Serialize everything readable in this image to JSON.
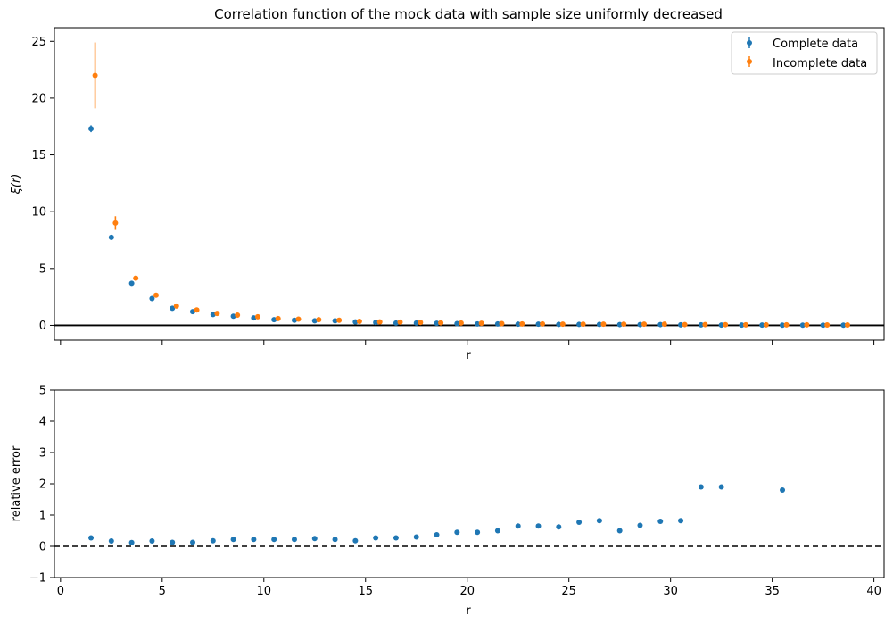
{
  "chart_data": [
    {
      "type": "scatter",
      "title": "Correlation function of the mock data with sample size uniformly decreased",
      "xlabel": "r",
      "ylabel": "ξ(r)",
      "xlim": [
        -0.3,
        40.5
      ],
      "ylim": [
        -1.3,
        26.2
      ],
      "xticks": [
        0,
        5,
        10,
        15,
        20,
        25,
        30,
        35,
        40
      ],
      "xtick_labels_shown": false,
      "yticks": [
        0,
        5,
        10,
        15,
        20,
        25
      ],
      "ytick_labels": [
        "0",
        "5",
        "10",
        "15",
        "20",
        "25"
      ],
      "legend_position": "top-right",
      "reference_line": {
        "y": 0,
        "style": "solid",
        "color": "#000000"
      },
      "series": [
        {
          "name": "Complete data",
          "color": "#1f77b4",
          "x": [
            1.5,
            2.5,
            3.5,
            4.5,
            5.5,
            6.5,
            7.5,
            8.5,
            9.5,
            10.5,
            11.5,
            12.5,
            13.5,
            14.5,
            15.5,
            16.5,
            17.5,
            18.5,
            19.5,
            20.5,
            21.5,
            22.5,
            23.5,
            24.5,
            25.5,
            26.5,
            27.5,
            28.5,
            29.5,
            30.5,
            31.5,
            32.5,
            33.5,
            34.5,
            35.5,
            36.5,
            37.5,
            38.5
          ],
          "y": [
            17.3,
            7.75,
            3.7,
            2.35,
            1.5,
            1.2,
            0.95,
            0.8,
            0.65,
            0.5,
            0.45,
            0.4,
            0.4,
            0.3,
            0.25,
            0.2,
            0.2,
            0.18,
            0.15,
            0.12,
            0.12,
            0.1,
            0.1,
            0.08,
            0.08,
            0.08,
            0.07,
            0.07,
            0.07,
            0.05,
            0.05,
            0.03,
            0.03,
            0.03,
            0.02,
            0.02,
            0.02,
            0.02
          ],
          "yerr": [
            0.3,
            0.1,
            0.1,
            0.05,
            0.05,
            0.05,
            0.03,
            0.03,
            0.03,
            0.03,
            0.03,
            0.02,
            0.02,
            0.02,
            0.02,
            0.02,
            0.02,
            0.02,
            0.02,
            0.02,
            0.02,
            0.02,
            0.02,
            0.02,
            0.02,
            0.02,
            0.02,
            0.02,
            0.02,
            0.02,
            0.02,
            0.02,
            0.02,
            0.02,
            0.02,
            0.02,
            0.02,
            0.02
          ]
        },
        {
          "name": "Incomplete data",
          "color": "#ff7f0e",
          "x": [
            1.7,
            2.7,
            3.7,
            4.7,
            5.7,
            6.7,
            7.7,
            8.7,
            9.7,
            10.7,
            11.7,
            12.7,
            13.7,
            14.7,
            15.7,
            16.7,
            17.7,
            18.7,
            19.7,
            20.7,
            21.7,
            22.7,
            23.7,
            24.7,
            25.7,
            26.7,
            27.7,
            28.7,
            29.7,
            30.7,
            31.7,
            32.7,
            33.7,
            34.7,
            35.7,
            36.7,
            37.7,
            38.7
          ],
          "y": [
            22.0,
            9.0,
            4.15,
            2.65,
            1.7,
            1.35,
            1.05,
            0.9,
            0.75,
            0.6,
            0.55,
            0.5,
            0.45,
            0.35,
            0.3,
            0.28,
            0.25,
            0.22,
            0.2,
            0.18,
            0.15,
            0.12,
            0.12,
            0.1,
            0.1,
            0.1,
            0.1,
            0.1,
            0.1,
            0.07,
            0.07,
            0.06,
            0.05,
            0.05,
            0.05,
            0.05,
            0.04,
            0.04
          ],
          "yerr": [
            2.9,
            0.6,
            0.2,
            0.1,
            0.05,
            0.05,
            0.05,
            0.03,
            0.03,
            0.03,
            0.03,
            0.03,
            0.03,
            0.02,
            0.02,
            0.02,
            0.02,
            0.02,
            0.02,
            0.02,
            0.02,
            0.02,
            0.02,
            0.02,
            0.02,
            0.02,
            0.02,
            0.02,
            0.02,
            0.02,
            0.02,
            0.02,
            0.02,
            0.02,
            0.02,
            0.02,
            0.02,
            0.02
          ]
        }
      ]
    },
    {
      "type": "scatter",
      "title": "",
      "xlabel": "r",
      "ylabel": "relative error",
      "xlim": [
        -0.3,
        40.5
      ],
      "ylim": [
        -1,
        5
      ],
      "xticks": [
        0,
        5,
        10,
        15,
        20,
        25,
        30,
        35,
        40
      ],
      "xtick_labels": [
        "0",
        "5",
        "10",
        "15",
        "20",
        "25",
        "30",
        "35",
        "40"
      ],
      "yticks": [
        -1,
        0,
        1,
        2,
        3,
        4,
        5
      ],
      "ytick_labels": [
        "−1",
        "0",
        "1",
        "2",
        "3",
        "4",
        "5"
      ],
      "reference_line": {
        "y": 0,
        "style": "dashed",
        "color": "#000000"
      },
      "series": [
        {
          "color": "#1f77b4",
          "x": [
            1.5,
            2.5,
            3.5,
            4.5,
            5.5,
            6.5,
            7.5,
            8.5,
            9.5,
            10.5,
            11.5,
            12.5,
            13.5,
            14.5,
            15.5,
            16.5,
            17.5,
            18.5,
            19.5,
            20.5,
            21.5,
            22.5,
            23.5,
            24.5,
            25.5,
            26.5,
            27.5,
            28.5,
            29.5,
            30.5,
            31.5,
            32.5,
            35.5
          ],
          "y": [
            0.27,
            0.17,
            0.12,
            0.17,
            0.13,
            0.13,
            0.18,
            0.22,
            0.22,
            0.22,
            0.22,
            0.25,
            0.22,
            0.18,
            0.27,
            0.27,
            0.3,
            0.37,
            0.45,
            0.45,
            0.5,
            0.65,
            0.65,
            0.62,
            0.77,
            0.82,
            0.5,
            0.67,
            0.8,
            0.82,
            1.9,
            1.9,
            1.8
          ]
        }
      ]
    }
  ]
}
